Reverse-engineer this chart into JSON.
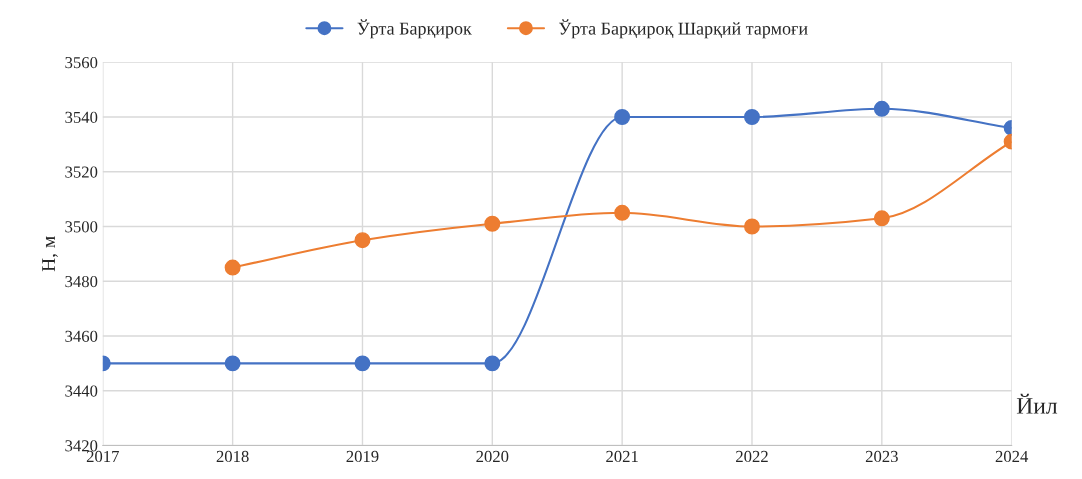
{
  "chart_data": {
    "type": "line",
    "xlabel": "Йил",
    "ylabel": "Н, м",
    "x": [
      2017,
      2018,
      2019,
      2020,
      2021,
      2022,
      2023,
      2024
    ],
    "series": [
      {
        "name": "Ўрта Барқирок",
        "color": "#4472c4",
        "values": [
          3450,
          3450,
          3450,
          3450,
          3540,
          3540,
          3543,
          3536
        ]
      },
      {
        "name": "Ўрта Барқироқ Шарқий тармоғи",
        "color": "#ed7d31",
        "x": [
          2018,
          2019,
          2020,
          2021,
          2022,
          2023,
          2024
        ],
        "values": [
          3485,
          3495,
          3501,
          3505,
          3500,
          3503,
          3531
        ]
      }
    ],
    "xlim": [
      2017,
      2024
    ],
    "xticks": [
      2017,
      2018,
      2019,
      2020,
      2021,
      2022,
      2023,
      2024
    ],
    "ylim": [
      3420,
      3560
    ],
    "yticks": [
      3420,
      3440,
      3460,
      3480,
      3500,
      3520,
      3540,
      3560
    ],
    "grid": true,
    "legend": "top",
    "marker": "circle",
    "line_style": "solid"
  }
}
